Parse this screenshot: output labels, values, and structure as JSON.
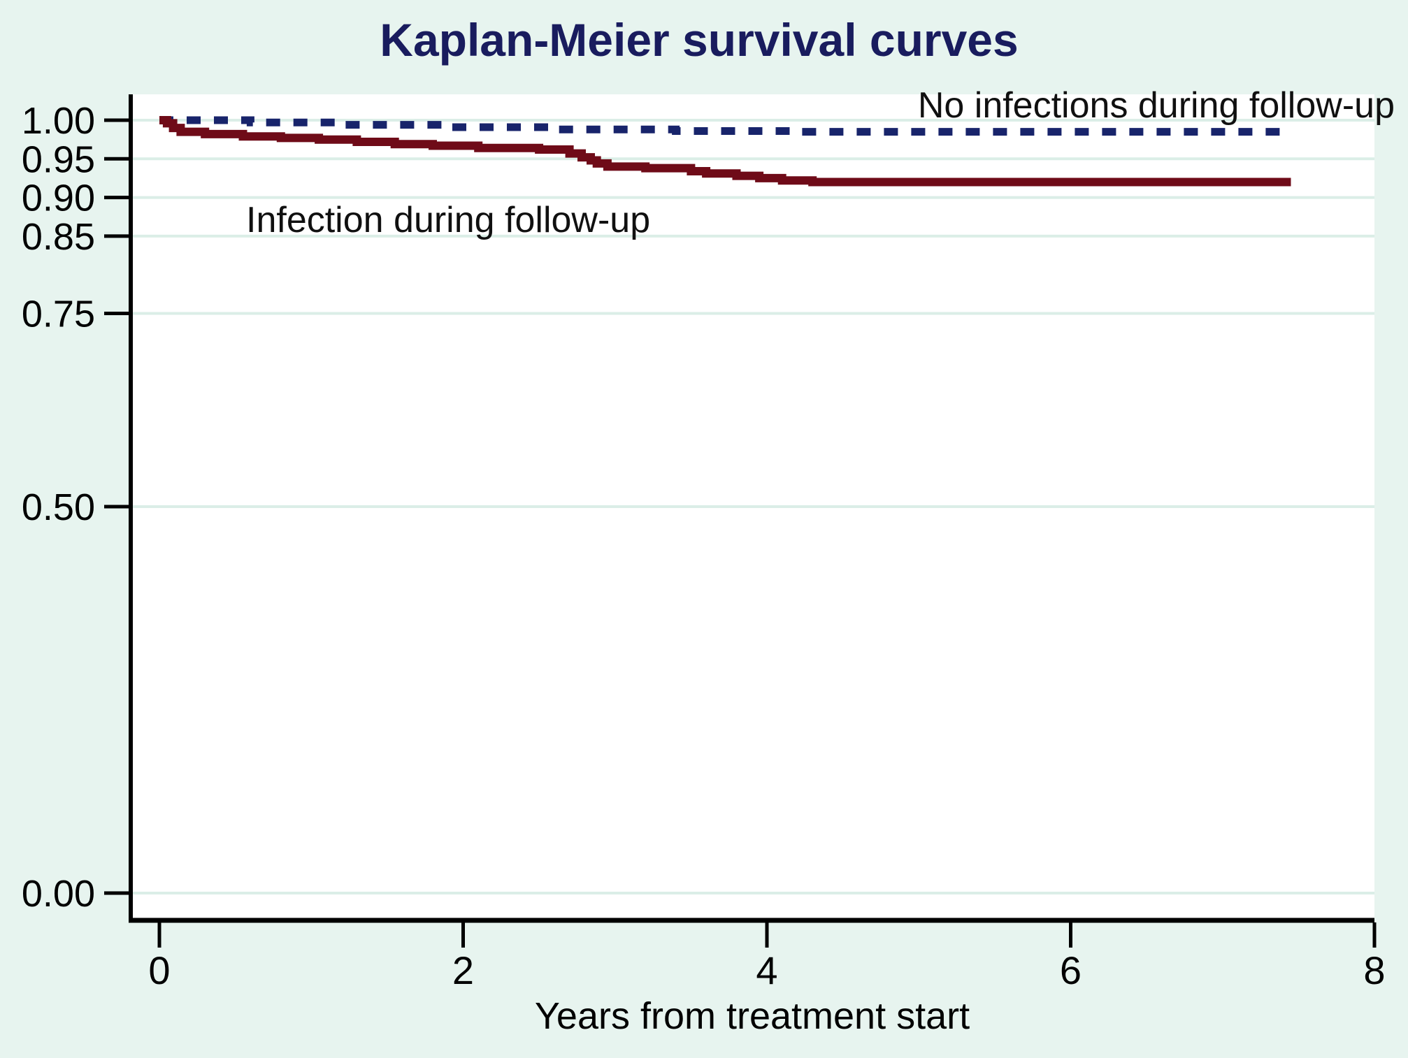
{
  "title": "Kaplan-Meier survival curves",
  "colors": {
    "page_background": "#e7f4ef",
    "plot_background": "#ffffff",
    "gridline": "#dbeee7",
    "axis": "#000000",
    "title_text": "#191c5e",
    "annotation_text": "#101010",
    "no_infection_line": "#18246b",
    "infection_line": "#6f0b18"
  },
  "chart_data": {
    "type": "line",
    "subtype": "kaplan-meier step curves",
    "title": "Kaplan-Meier survival curves",
    "xlabel": "Years from treatment start",
    "ylabel": "",
    "xlim": [
      0,
      8
    ],
    "ylim": [
      0.0,
      1.0
    ],
    "x_ticks": [
      0,
      2,
      4,
      6,
      8
    ],
    "x_tick_labels": [
      "0",
      "2",
      "4",
      "6",
      "8"
    ],
    "y_ticks": [
      1.0,
      0.95,
      0.9,
      0.85,
      0.75,
      0.5,
      0.0
    ],
    "y_tick_labels": [
      "1.00",
      "0.95",
      "0.90",
      "0.85",
      "0.75",
      "0.50",
      "0.00"
    ],
    "grid": "horizontal, pale mint on white",
    "legend_position": "inline text annotations",
    "step": true,
    "series": [
      {
        "name": "No infections during follow-up",
        "style": "dotted",
        "color": "#18246b",
        "points": [
          [
            0,
            1.0
          ],
          [
            0.6,
            0.997
          ],
          [
            1.2,
            0.994
          ],
          [
            1.9,
            0.991
          ],
          [
            2.6,
            0.988
          ],
          [
            3.4,
            0.986
          ],
          [
            4.2,
            0.985
          ],
          [
            7.45,
            0.985
          ]
        ]
      },
      {
        "name": "Infection during follow-up",
        "style": "solid",
        "color": "#6f0b18",
        "points": [
          [
            0,
            1.0
          ],
          [
            0.05,
            0.996
          ],
          [
            0.09,
            0.99
          ],
          [
            0.14,
            0.985
          ],
          [
            0.3,
            0.982
          ],
          [
            0.55,
            0.979
          ],
          [
            0.8,
            0.977
          ],
          [
            1.05,
            0.975
          ],
          [
            1.3,
            0.972
          ],
          [
            1.55,
            0.969
          ],
          [
            1.8,
            0.967
          ],
          [
            2.1,
            0.964
          ],
          [
            2.5,
            0.962
          ],
          [
            2.7,
            0.957
          ],
          [
            2.78,
            0.952
          ],
          [
            2.84,
            0.948
          ],
          [
            2.88,
            0.944
          ],
          [
            2.95,
            0.94
          ],
          [
            3.2,
            0.938
          ],
          [
            3.5,
            0.934
          ],
          [
            3.6,
            0.931
          ],
          [
            3.8,
            0.928
          ],
          [
            3.95,
            0.925
          ],
          [
            4.1,
            0.922
          ],
          [
            4.3,
            0.92
          ],
          [
            7.45,
            0.92
          ]
        ]
      }
    ],
    "annotations": [
      {
        "text": "No infections during follow-up",
        "position": "top right, above dotted curve"
      },
      {
        "text": "Infection during follow-up",
        "position": "upper left, below solid curve"
      }
    ]
  }
}
